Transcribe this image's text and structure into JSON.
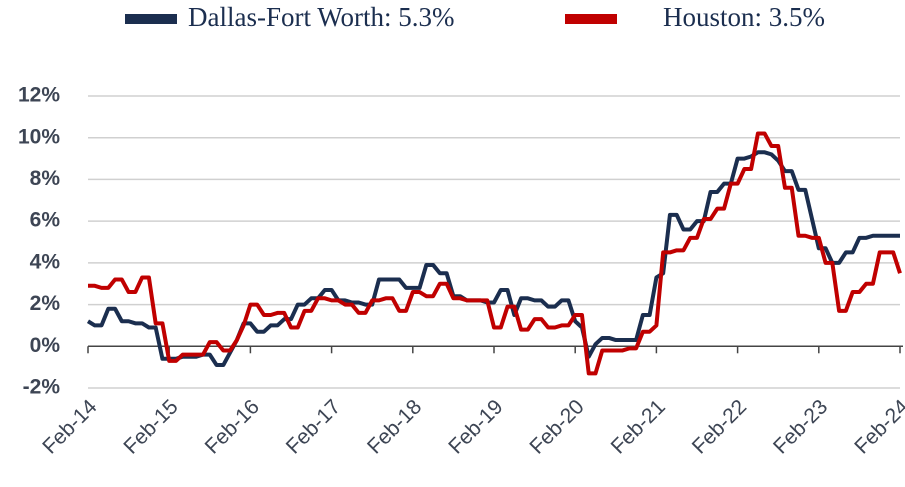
{
  "chart_data": {
    "type": "line",
    "categories": [
      "Feb-14",
      null,
      null,
      null,
      null,
      null,
      null,
      null,
      null,
      null,
      null,
      null,
      "Feb-15",
      null,
      null,
      null,
      null,
      null,
      null,
      null,
      null,
      null,
      null,
      null,
      "Feb-16",
      null,
      null,
      null,
      null,
      null,
      null,
      null,
      null,
      null,
      null,
      null,
      "Feb-17",
      null,
      null,
      null,
      null,
      null,
      null,
      null,
      null,
      null,
      null,
      null,
      "Feb-18",
      null,
      null,
      null,
      null,
      null,
      null,
      null,
      null,
      null,
      null,
      null,
      "Feb-19",
      null,
      null,
      null,
      null,
      null,
      null,
      null,
      null,
      null,
      null,
      null,
      "Feb-20",
      null,
      null,
      null,
      null,
      null,
      null,
      null,
      null,
      null,
      null,
      null,
      "Feb-21",
      null,
      null,
      null,
      null,
      null,
      null,
      null,
      null,
      null,
      null,
      null,
      "Feb-22",
      null,
      null,
      null,
      null,
      null,
      null,
      null,
      null,
      null,
      null,
      null,
      "Feb-23",
      null,
      null,
      null,
      null,
      null,
      null,
      null,
      null,
      null,
      null,
      null,
      "Feb-24"
    ],
    "series": [
      {
        "name": "Dallas-Fort Worth: 5.3%",
        "color": "#1b2e4f",
        "values": [
          1.2,
          1.0,
          1.0,
          1.8,
          1.8,
          1.2,
          1.2,
          1.1,
          1.1,
          0.9,
          0.9,
          -0.6,
          -0.6,
          -0.6,
          -0.5,
          -0.5,
          -0.5,
          -0.4,
          -0.4,
          -0.9,
          -0.9,
          -0.3,
          0.3,
          1.1,
          1.1,
          0.7,
          0.7,
          1.0,
          1.0,
          1.3,
          1.3,
          2.0,
          2.0,
          2.3,
          2.3,
          2.7,
          2.7,
          2.2,
          2.2,
          2.1,
          2.1,
          2.0,
          2.0,
          3.2,
          3.2,
          3.2,
          3.2,
          2.8,
          2.8,
          2.8,
          3.9,
          3.9,
          3.5,
          3.5,
          2.4,
          2.4,
          2.2,
          2.2,
          2.2,
          2.1,
          2.1,
          2.7,
          2.7,
          1.5,
          2.3,
          2.3,
          2.2,
          2.2,
          1.9,
          1.9,
          2.2,
          2.2,
          1.2,
          0.9,
          -0.5,
          0.1,
          0.4,
          0.4,
          0.3,
          0.3,
          0.3,
          0.3,
          1.5,
          1.5,
          3.3,
          3.5,
          6.3,
          6.3,
          5.6,
          5.6,
          6.0,
          6.0,
          7.4,
          7.4,
          7.8,
          7.8,
          9.0,
          9.0,
          9.1,
          9.3,
          9.3,
          9.2,
          8.9,
          8.4,
          8.4,
          7.5,
          7.5,
          6.1,
          4.7,
          4.7,
          4.0,
          4.0,
          4.5,
          4.5,
          5.2,
          5.2,
          5.3,
          5.3,
          5.3,
          5.3,
          5.3
        ]
      },
      {
        "name": "Houston: 3.5%",
        "color": "#c00000",
        "values": [
          2.9,
          2.9,
          2.8,
          2.8,
          3.2,
          3.2,
          2.6,
          2.6,
          3.3,
          3.3,
          1.1,
          1.1,
          -0.7,
          -0.7,
          -0.4,
          -0.4,
          -0.4,
          -0.4,
          0.2,
          0.2,
          -0.2,
          -0.2,
          0.3,
          1.0,
          2.0,
          2.0,
          1.5,
          1.5,
          1.6,
          1.6,
          0.9,
          0.9,
          1.7,
          1.7,
          2.3,
          2.3,
          2.2,
          2.2,
          2.0,
          2.0,
          1.6,
          1.6,
          2.2,
          2.2,
          2.3,
          2.3,
          1.7,
          1.7,
          2.6,
          2.6,
          2.4,
          2.4,
          3.0,
          3.0,
          2.3,
          2.3,
          2.2,
          2.2,
          2.2,
          2.2,
          0.9,
          0.9,
          1.9,
          1.9,
          0.8,
          0.8,
          1.3,
          1.3,
          0.9,
          0.9,
          1.0,
          1.0,
          1.5,
          1.5,
          -1.3,
          -1.3,
          -0.2,
          -0.2,
          -0.2,
          -0.2,
          -0.1,
          -0.1,
          0.7,
          0.7,
          1.0,
          4.5,
          4.5,
          4.6,
          4.6,
          5.2,
          5.2,
          6.1,
          6.1,
          6.6,
          6.6,
          7.8,
          7.8,
          8.5,
          8.5,
          10.2,
          10.2,
          9.6,
          9.6,
          7.6,
          7.6,
          5.3,
          5.3,
          5.2,
          5.2,
          4.0,
          4.0,
          1.7,
          1.7,
          2.6,
          2.6,
          3.0,
          3.0,
          4.5,
          4.5,
          4.5,
          3.5
        ]
      }
    ],
    "ylim": [
      -2,
      12
    ],
    "yticks": [
      {
        "value": -2,
        "label": "-2%"
      },
      {
        "value": 0,
        "label": "0%"
      },
      {
        "value": 2,
        "label": "2%"
      },
      {
        "value": 4,
        "label": "4%"
      },
      {
        "value": 6,
        "label": "6%"
      },
      {
        "value": 8,
        "label": "8%"
      },
      {
        "value": 10,
        "label": "10%"
      },
      {
        "value": 12,
        "label": "12%"
      }
    ],
    "grid": true,
    "legend": "top"
  }
}
